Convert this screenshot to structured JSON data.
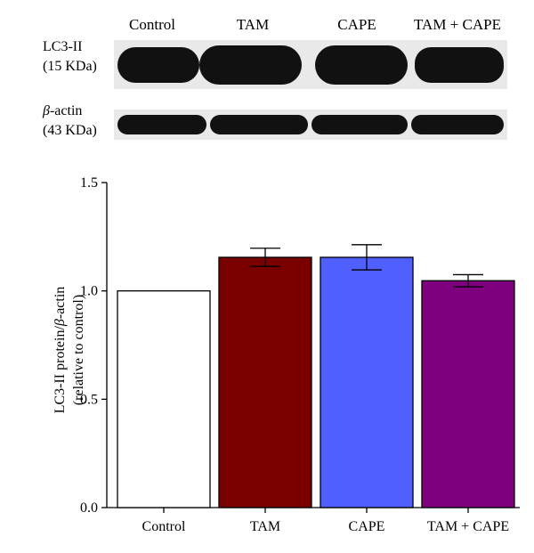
{
  "blot": {
    "lanes": [
      "Control",
      "TAM",
      "CAPE",
      "TAM + CAPE"
    ],
    "rows": [
      {
        "name_prefix": "",
        "name_italic": "",
        "name": "LC3-II",
        "size": "(15 KDa)"
      },
      {
        "name_prefix": "β",
        "name_italic": "β",
        "name": "-actin",
        "size": "(43 KDa)"
      }
    ]
  },
  "chart_data": {
    "type": "bar",
    "categories": [
      "Control",
      "TAM",
      "CAPE",
      "TAM + CAPE"
    ],
    "values": [
      1.0,
      1.155,
      1.155,
      1.047
    ],
    "errors": [
      0.0,
      0.042,
      0.058,
      0.028
    ],
    "colors": [
      "#ffffff",
      "#7a0000",
      "#5060ff",
      "#7f007f"
    ],
    "ylabel_line1_pre": "LC3-II protein/",
    "ylabel_line1_ital": "β",
    "ylabel_line1_post": "-actin",
    "ylabel_line2": "(relative to control)",
    "ylim": [
      0.0,
      1.5
    ],
    "yticks": [
      "0.0",
      "0.5",
      "1.0",
      "1.5"
    ],
    "ytick_values": [
      0.0,
      0.5,
      1.0,
      1.5
    ]
  }
}
